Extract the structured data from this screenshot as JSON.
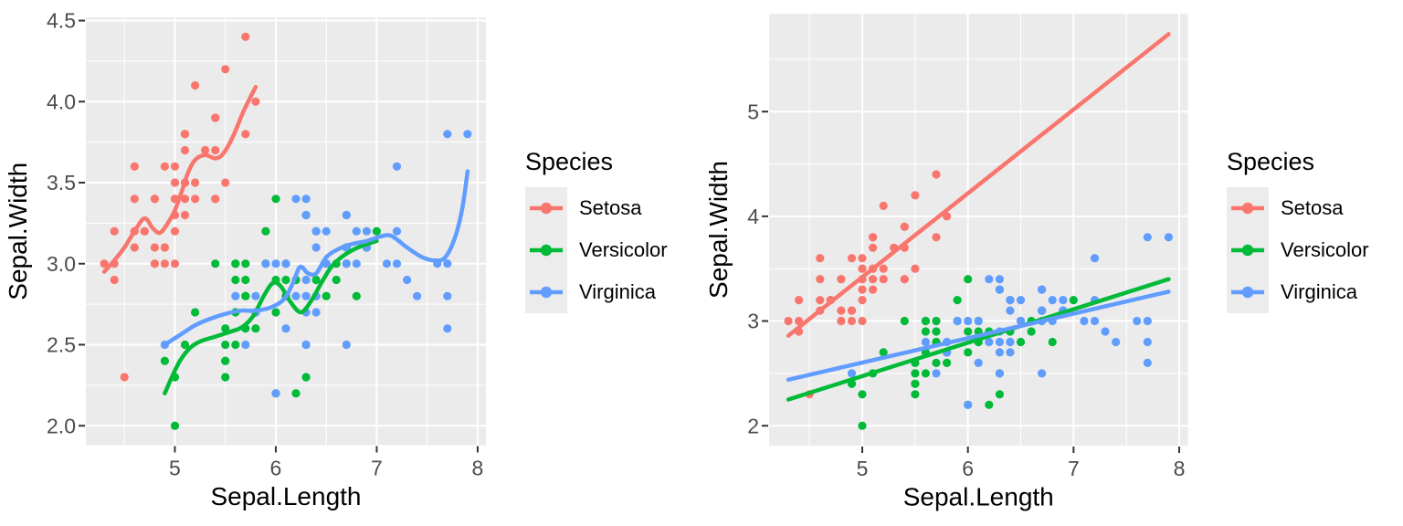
{
  "chart_data": {
    "type": "scatter",
    "title": "",
    "xlabel": "Sepal.Length",
    "ylabel": "Sepal.Width",
    "legend": {
      "title": "Species",
      "position": "right"
    },
    "style": {
      "panel_bg": "#EBEBEB",
      "grid_color": "#FFFFFF",
      "tick_label_color": "#4D4D4D",
      "tick_mark_color": "#333333",
      "axis_title_color": "#000000",
      "legend_key_bg": "#ECECEC",
      "background": "#FFFFFF"
    },
    "species": [
      {
        "name": "Setosa",
        "color": "#F8766D",
        "points": [
          [
            5.1,
            3.5
          ],
          [
            4.9,
            3.0
          ],
          [
            4.7,
            3.2
          ],
          [
            4.6,
            3.1
          ],
          [
            5.0,
            3.6
          ],
          [
            5.4,
            3.9
          ],
          [
            4.6,
            3.4
          ],
          [
            5.0,
            3.4
          ],
          [
            4.4,
            2.9
          ],
          [
            4.9,
            3.1
          ],
          [
            5.4,
            3.7
          ],
          [
            4.8,
            3.4
          ],
          [
            4.8,
            3.0
          ],
          [
            4.3,
            3.0
          ],
          [
            5.8,
            4.0
          ],
          [
            5.7,
            4.4
          ],
          [
            5.4,
            3.9
          ],
          [
            5.1,
            3.5
          ],
          [
            5.7,
            3.8
          ],
          [
            5.1,
            3.8
          ],
          [
            5.4,
            3.4
          ],
          [
            5.1,
            3.7
          ],
          [
            4.6,
            3.6
          ],
          [
            5.1,
            3.3
          ],
          [
            4.8,
            3.4
          ],
          [
            5.0,
            3.0
          ],
          [
            5.0,
            3.4
          ],
          [
            5.2,
            3.5
          ],
          [
            5.2,
            3.4
          ],
          [
            4.7,
            3.2
          ],
          [
            4.8,
            3.1
          ],
          [
            5.4,
            3.4
          ],
          [
            5.2,
            4.1
          ],
          [
            5.5,
            4.2
          ],
          [
            4.9,
            3.1
          ],
          [
            5.0,
            3.2
          ],
          [
            5.5,
            3.5
          ],
          [
            4.9,
            3.6
          ],
          [
            4.4,
            3.0
          ],
          [
            5.1,
            3.4
          ],
          [
            5.0,
            3.5
          ],
          [
            4.5,
            2.3
          ],
          [
            4.4,
            3.2
          ],
          [
            5.0,
            3.5
          ],
          [
            5.1,
            3.8
          ],
          [
            4.8,
            3.0
          ],
          [
            5.1,
            3.8
          ],
          [
            4.6,
            3.2
          ],
          [
            5.3,
            3.7
          ],
          [
            5.0,
            3.3
          ]
        ]
      },
      {
        "name": "Versicolor",
        "color": "#00BA38",
        "points": [
          [
            7.0,
            3.2
          ],
          [
            6.4,
            3.2
          ],
          [
            6.9,
            3.1
          ],
          [
            5.5,
            2.3
          ],
          [
            6.5,
            2.8
          ],
          [
            5.7,
            2.8
          ],
          [
            6.3,
            3.3
          ],
          [
            4.9,
            2.4
          ],
          [
            6.6,
            2.9
          ],
          [
            5.2,
            2.7
          ],
          [
            5.0,
            2.0
          ],
          [
            5.9,
            3.0
          ],
          [
            6.0,
            2.2
          ],
          [
            6.1,
            2.9
          ],
          [
            5.6,
            2.9
          ],
          [
            6.7,
            3.1
          ],
          [
            5.6,
            3.0
          ],
          [
            5.8,
            2.7
          ],
          [
            6.2,
            2.2
          ],
          [
            5.6,
            2.5
          ],
          [
            5.9,
            3.2
          ],
          [
            6.1,
            2.8
          ],
          [
            6.3,
            2.5
          ],
          [
            6.1,
            2.8
          ],
          [
            6.4,
            2.9
          ],
          [
            6.6,
            3.0
          ],
          [
            6.8,
            2.8
          ],
          [
            6.7,
            3.0
          ],
          [
            6.0,
            2.9
          ],
          [
            5.7,
            2.6
          ],
          [
            5.5,
            2.4
          ],
          [
            5.5,
            2.4
          ],
          [
            5.8,
            2.7
          ],
          [
            6.0,
            2.7
          ],
          [
            5.4,
            3.0
          ],
          [
            6.0,
            3.4
          ],
          [
            6.7,
            3.1
          ],
          [
            6.3,
            2.3
          ],
          [
            5.6,
            3.0
          ],
          [
            5.5,
            2.5
          ],
          [
            5.5,
            2.6
          ],
          [
            6.1,
            3.0
          ],
          [
            5.8,
            2.6
          ],
          [
            5.0,
            2.3
          ],
          [
            5.6,
            2.7
          ],
          [
            5.7,
            3.0
          ],
          [
            5.7,
            2.9
          ],
          [
            6.2,
            2.9
          ],
          [
            5.1,
            2.5
          ],
          [
            5.7,
            2.8
          ]
        ]
      },
      {
        "name": "Virginica",
        "color": "#619CFF",
        "points": [
          [
            6.3,
            3.3
          ],
          [
            5.8,
            2.7
          ],
          [
            7.1,
            3.0
          ],
          [
            6.3,
            2.9
          ],
          [
            6.5,
            3.0
          ],
          [
            7.6,
            3.0
          ],
          [
            4.9,
            2.5
          ],
          [
            7.3,
            2.9
          ],
          [
            6.7,
            2.5
          ],
          [
            7.2,
            3.6
          ],
          [
            6.5,
            3.2
          ],
          [
            6.4,
            2.7
          ],
          [
            6.8,
            3.0
          ],
          [
            5.7,
            2.5
          ],
          [
            5.8,
            2.8
          ],
          [
            6.4,
            3.2
          ],
          [
            6.5,
            3.0
          ],
          [
            7.7,
            3.8
          ],
          [
            7.7,
            2.6
          ],
          [
            6.0,
            2.2
          ],
          [
            6.9,
            3.2
          ],
          [
            5.6,
            2.8
          ],
          [
            7.7,
            2.8
          ],
          [
            6.3,
            2.7
          ],
          [
            6.7,
            3.3
          ],
          [
            7.2,
            3.2
          ],
          [
            6.2,
            2.8
          ],
          [
            6.1,
            3.0
          ],
          [
            6.4,
            2.8
          ],
          [
            7.2,
            3.0
          ],
          [
            7.4,
            2.8
          ],
          [
            7.9,
            3.8
          ],
          [
            6.4,
            2.8
          ],
          [
            6.3,
            2.8
          ],
          [
            6.1,
            2.6
          ],
          [
            7.7,
            3.0
          ],
          [
            6.3,
            3.4
          ],
          [
            6.4,
            3.1
          ],
          [
            6.0,
            3.0
          ],
          [
            6.9,
            3.1
          ],
          [
            6.7,
            3.1
          ],
          [
            6.9,
            3.1
          ],
          [
            5.8,
            2.7
          ],
          [
            6.8,
            3.2
          ],
          [
            6.7,
            3.3
          ],
          [
            6.7,
            3.0
          ],
          [
            6.3,
            2.5
          ],
          [
            6.5,
            3.0
          ],
          [
            6.2,
            3.4
          ],
          [
            5.9,
            3.0
          ]
        ]
      }
    ],
    "panels": [
      {
        "name": "loess-panel",
        "smooth_method": "loess",
        "xlim": [
          4.118,
          8.082
        ],
        "ylim": [
          1.88,
          4.52
        ],
        "x_ticks": [
          {
            "v": 5,
            "label": "5"
          },
          {
            "v": 6,
            "label": "6"
          },
          {
            "v": 7,
            "label": "7"
          },
          {
            "v": 8,
            "label": "8"
          }
        ],
        "y_ticks": [
          {
            "v": 2.0,
            "label": "2.0"
          },
          {
            "v": 2.5,
            "label": "2.5"
          },
          {
            "v": 3.0,
            "label": "3.0"
          },
          {
            "v": 3.5,
            "label": "3.5"
          },
          {
            "v": 4.0,
            "label": "4.0"
          },
          {
            "v": 4.5,
            "label": "4.5"
          }
        ],
        "x_minor": [
          4.5,
          5.5,
          6.5,
          7.5
        ],
        "y_minor": [
          2.25,
          2.75,
          3.25,
          3.75,
          4.25
        ],
        "smooths": [
          {
            "species": "Setosa",
            "path": [
              [
                4.3,
                2.95
              ],
              [
                4.4,
                3.02
              ],
              [
                4.5,
                3.1
              ],
              [
                4.6,
                3.2
              ],
              [
                4.7,
                3.28
              ],
              [
                4.78,
                3.22
              ],
              [
                4.85,
                3.19
              ],
              [
                4.92,
                3.24
              ],
              [
                5.0,
                3.33
              ],
              [
                5.07,
                3.45
              ],
              [
                5.13,
                3.56
              ],
              [
                5.2,
                3.64
              ],
              [
                5.3,
                3.67
              ],
              [
                5.4,
                3.65
              ],
              [
                5.48,
                3.68
              ],
              [
                5.58,
                3.79
              ],
              [
                5.68,
                3.94
              ],
              [
                5.8,
                4.09
              ]
            ]
          },
          {
            "species": "Versicolor",
            "path": [
              [
                4.9,
                2.2
              ],
              [
                4.97,
                2.3
              ],
              [
                5.05,
                2.4
              ],
              [
                5.15,
                2.48
              ],
              [
                5.25,
                2.52
              ],
              [
                5.4,
                2.55
              ],
              [
                5.55,
                2.58
              ],
              [
                5.67,
                2.61
              ],
              [
                5.78,
                2.68
              ],
              [
                5.88,
                2.8
              ],
              [
                5.97,
                2.88
              ],
              [
                6.05,
                2.86
              ],
              [
                6.15,
                2.76
              ],
              [
                6.25,
                2.7
              ],
              [
                6.35,
                2.77
              ],
              [
                6.45,
                2.88
              ],
              [
                6.55,
                2.98
              ],
              [
                6.65,
                3.04
              ],
              [
                6.78,
                3.09
              ],
              [
                6.9,
                3.12
              ],
              [
                7.0,
                3.14
              ]
            ]
          },
          {
            "species": "Virginica",
            "path": [
              [
                4.9,
                2.5
              ],
              [
                5.05,
                2.56
              ],
              [
                5.2,
                2.62
              ],
              [
                5.35,
                2.66
              ],
              [
                5.5,
                2.69
              ],
              [
                5.65,
                2.71
              ],
              [
                5.8,
                2.71
              ],
              [
                5.95,
                2.73
              ],
              [
                6.08,
                2.78
              ],
              [
                6.17,
                2.88
              ],
              [
                6.24,
                2.98
              ],
              [
                6.32,
                2.94
              ],
              [
                6.4,
                2.94
              ],
              [
                6.5,
                3.04
              ],
              [
                6.62,
                3.09
              ],
              [
                6.75,
                3.12
              ],
              [
                6.9,
                3.14
              ],
              [
                7.05,
                3.17
              ],
              [
                7.15,
                3.17
              ],
              [
                7.3,
                3.1
              ],
              [
                7.45,
                3.04
              ],
              [
                7.58,
                3.02
              ],
              [
                7.68,
                3.04
              ],
              [
                7.78,
                3.17
              ],
              [
                7.85,
                3.35
              ],
              [
                7.9,
                3.57
              ]
            ]
          }
        ]
      },
      {
        "name": "lm-panel",
        "smooth_method": "lm",
        "xlim": [
          4.118,
          8.082
        ],
        "ylim": [
          1.81,
          5.935
        ],
        "x_ticks": [
          {
            "v": 5,
            "label": "5"
          },
          {
            "v": 6,
            "label": "6"
          },
          {
            "v": 7,
            "label": "7"
          },
          {
            "v": 8,
            "label": "8"
          }
        ],
        "y_ticks": [
          {
            "v": 2,
            "label": "2"
          },
          {
            "v": 3,
            "label": "3"
          },
          {
            "v": 4,
            "label": "4"
          },
          {
            "v": 5,
            "label": "5"
          }
        ],
        "x_minor": [
          4.5,
          5.5,
          6.5,
          7.5
        ],
        "y_minor": [
          2.5,
          3.5,
          4.5,
          5.5
        ],
        "smooths": [
          {
            "species": "Setosa",
            "path": [
              [
                4.3,
                2.86
              ],
              [
                7.9,
                5.74
              ]
            ]
          },
          {
            "species": "Versicolor",
            "path": [
              [
                4.3,
                2.25
              ],
              [
                7.9,
                3.4
              ]
            ]
          },
          {
            "species": "Virginica",
            "path": [
              [
                4.3,
                2.44
              ],
              [
                7.9,
                3.28
              ]
            ]
          }
        ]
      }
    ]
  }
}
